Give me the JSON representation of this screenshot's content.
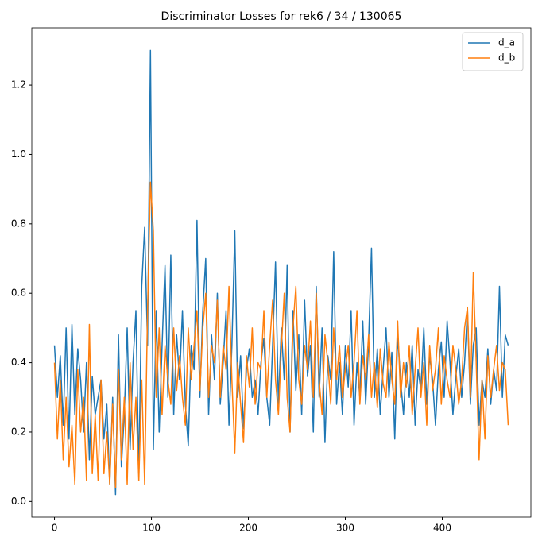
{
  "chart_data": {
    "type": "line",
    "title": "Discriminator Losses for rek6 / 34 / 130065",
    "x": [
      0,
      3,
      6,
      9,
      12,
      15,
      18,
      21,
      24,
      27,
      30,
      33,
      36,
      39,
      42,
      45,
      48,
      51,
      54,
      57,
      60,
      63,
      66,
      69,
      72,
      75,
      78,
      81,
      84,
      87,
      90,
      93,
      96,
      99,
      102,
      105,
      108,
      111,
      114,
      117,
      120,
      123,
      126,
      129,
      132,
      135,
      138,
      141,
      144,
      147,
      150,
      153,
      156,
      159,
      162,
      165,
      168,
      171,
      174,
      177,
      180,
      183,
      186,
      189,
      192,
      195,
      198,
      201,
      204,
      207,
      210,
      213,
      216,
      219,
      222,
      225,
      228,
      231,
      234,
      237,
      240,
      243,
      246,
      249,
      252,
      255,
      258,
      261,
      264,
      267,
      270,
      273,
      276,
      279,
      282,
      285,
      288,
      291,
      294,
      297,
      300,
      303,
      306,
      309,
      312,
      315,
      318,
      321,
      324,
      327,
      330,
      333,
      336,
      339,
      342,
      345,
      348,
      351,
      354,
      357,
      360,
      363,
      366,
      369,
      372,
      375,
      378,
      381,
      384,
      387,
      390,
      393,
      396,
      399,
      402,
      405,
      408,
      411,
      414,
      417,
      420,
      423,
      426,
      429,
      432,
      435,
      438,
      441,
      444,
      447,
      450,
      453,
      456,
      459,
      462,
      465,
      468
    ],
    "series": [
      {
        "name": "d_a",
        "color": "#1f77b4",
        "values": [
          0.45,
          0.3,
          0.42,
          0.22,
          0.5,
          0.18,
          0.51,
          0.25,
          0.44,
          0.35,
          0.2,
          0.4,
          0.12,
          0.36,
          0.25,
          0.3,
          0.35,
          0.18,
          0.28,
          0.05,
          0.3,
          0.02,
          0.48,
          0.1,
          0.25,
          0.5,
          0.15,
          0.4,
          0.55,
          0.08,
          0.62,
          0.79,
          0.45,
          1.3,
          0.15,
          0.55,
          0.2,
          0.45,
          0.68,
          0.3,
          0.71,
          0.25,
          0.48,
          0.35,
          0.55,
          0.28,
          0.16,
          0.45,
          0.38,
          0.81,
          0.3,
          0.55,
          0.7,
          0.25,
          0.48,
          0.35,
          0.6,
          0.28,
          0.4,
          0.55,
          0.22,
          0.45,
          0.78,
          0.3,
          0.42,
          0.21,
          0.38,
          0.44,
          0.3,
          0.35,
          0.25,
          0.4,
          0.47,
          0.3,
          0.22,
          0.45,
          0.69,
          0.28,
          0.5,
          0.35,
          0.68,
          0.2,
          0.55,
          0.32,
          0.48,
          0.25,
          0.58,
          0.36,
          0.45,
          0.2,
          0.62,
          0.3,
          0.5,
          0.17,
          0.42,
          0.35,
          0.72,
          0.28,
          0.4,
          0.25,
          0.45,
          0.33,
          0.55,
          0.22,
          0.4,
          0.3,
          0.52,
          0.28,
          0.46,
          0.73,
          0.3,
          0.44,
          0.25,
          0.38,
          0.5,
          0.3,
          0.43,
          0.18,
          0.48,
          0.35,
          0.25,
          0.4,
          0.3,
          0.45,
          0.22,
          0.38,
          0.32,
          0.5,
          0.28,
          0.42,
          0.35,
          0.22,
          0.38,
          0.46,
          0.3,
          0.52,
          0.4,
          0.25,
          0.36,
          0.44,
          0.3,
          0.4,
          0.55,
          0.28,
          0.45,
          0.5,
          0.22,
          0.35,
          0.3,
          0.44,
          0.28,
          0.38,
          0.32,
          0.62,
          0.3,
          0.48,
          0.45
        ]
      },
      {
        "name": "d_b",
        "color": "#ff7f0e",
        "values": [
          0.4,
          0.18,
          0.35,
          0.12,
          0.3,
          0.1,
          0.22,
          0.05,
          0.38,
          0.2,
          0.3,
          0.06,
          0.51,
          0.08,
          0.25,
          0.06,
          0.35,
          0.08,
          0.2,
          0.05,
          0.28,
          0.04,
          0.38,
          0.12,
          0.3,
          0.05,
          0.4,
          0.15,
          0.3,
          0.06,
          0.35,
          0.05,
          0.55,
          0.92,
          0.78,
          0.3,
          0.5,
          0.25,
          0.45,
          0.35,
          0.28,
          0.5,
          0.32,
          0.42,
          0.3,
          0.22,
          0.5,
          0.35,
          0.45,
          0.55,
          0.32,
          0.5,
          0.6,
          0.3,
          0.45,
          0.4,
          0.58,
          0.3,
          0.45,
          0.38,
          0.62,
          0.35,
          0.14,
          0.4,
          0.28,
          0.17,
          0.42,
          0.33,
          0.5,
          0.28,
          0.4,
          0.38,
          0.55,
          0.3,
          0.45,
          0.58,
          0.35,
          0.25,
          0.44,
          0.6,
          0.3,
          0.2,
          0.5,
          0.62,
          0.35,
          0.28,
          0.45,
          0.38,
          0.52,
          0.3,
          0.6,
          0.35,
          0.25,
          0.48,
          0.4,
          0.28,
          0.5,
          0.35,
          0.45,
          0.3,
          0.38,
          0.45,
          0.3,
          0.4,
          0.55,
          0.28,
          0.42,
          0.35,
          0.48,
          0.3,
          0.4,
          0.27,
          0.44,
          0.34,
          0.3,
          0.46,
          0.35,
          0.28,
          0.52,
          0.3,
          0.4,
          0.33,
          0.45,
          0.25,
          0.38,
          0.5,
          0.3,
          0.4,
          0.22,
          0.45,
          0.32,
          0.38,
          0.5,
          0.28,
          0.42,
          0.35,
          0.3,
          0.45,
          0.38,
          0.28,
          0.35,
          0.5,
          0.56,
          0.3,
          0.66,
          0.4,
          0.12,
          0.35,
          0.18,
          0.42,
          0.3,
          0.38,
          0.45,
          0.32,
          0.4,
          0.38,
          0.22
        ]
      }
    ],
    "xlim": [
      -23.4,
      491.4
    ],
    "ylim": [
      -0.045,
      1.365
    ],
    "xticks": [
      0,
      100,
      200,
      300,
      400
    ],
    "yticks": [
      {
        "value": 0,
        "label": "0.0"
      },
      0.2,
      0.4,
      0.6,
      0.8,
      {
        "value": 1,
        "label": "1.0"
      },
      1.2
    ],
    "legend": "upper right"
  }
}
